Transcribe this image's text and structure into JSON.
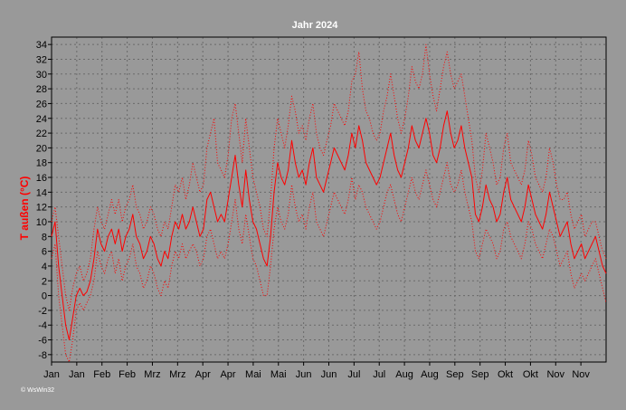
{
  "chart_data": {
    "type": "line",
    "title": "Jahr 2024",
    "ylabel": "T außen (°C)",
    "xlabel": "",
    "credit": "© WsWin32",
    "ylim": [
      -9,
      35
    ],
    "yticks": [
      34,
      32,
      30,
      28,
      26,
      24,
      22,
      20,
      18,
      16,
      14,
      12,
      10,
      8,
      6,
      4,
      2,
      0,
      -2,
      -4,
      -6,
      -8
    ],
    "month_labels": [
      "Jan",
      "Jan",
      "Feb",
      "Feb",
      "Mrz",
      "Mrz",
      "Apr",
      "Apr",
      "Mai",
      "Mai",
      "Jun",
      "Jun",
      "Jul",
      "Jul",
      "Aug",
      "Aug",
      "Sep",
      "Sep",
      "Okt",
      "Okt",
      "Nov",
      "Nov"
    ],
    "grid": true,
    "colors": {
      "background": "#999999",
      "line": "#ff0000",
      "grid": "#6a6a6a",
      "title": "#ffffff",
      "ylabel": "#ff0000"
    },
    "series": [
      {
        "style": "solid",
        "values": [
          8,
          10,
          4,
          0,
          -4,
          -6,
          -3,
          0,
          1,
          0,
          0.5,
          2,
          5,
          9,
          7,
          6,
          8,
          9,
          7,
          9,
          6,
          8,
          9,
          11,
          8,
          7,
          5,
          6,
          8,
          7,
          5,
          4,
          6,
          5,
          8,
          10,
          9,
          11,
          9,
          10,
          12,
          10,
          8,
          9,
          13,
          14,
          12,
          10,
          11,
          10,
          13,
          16,
          19,
          15,
          12,
          17,
          13,
          10,
          9,
          7,
          5,
          4,
          8,
          14,
          18,
          16,
          15,
          17,
          21,
          18,
          16,
          17,
          15,
          18,
          20,
          16,
          15,
          14,
          16,
          18,
          20,
          19,
          18,
          17,
          19,
          22,
          20,
          23,
          21,
          18,
          17,
          16,
          15,
          16,
          18,
          20,
          22,
          19,
          17,
          16,
          18,
          20,
          23,
          21,
          20,
          22,
          24,
          22,
          19,
          18,
          20,
          23,
          25,
          22,
          20,
          21,
          23,
          20,
          18,
          16,
          11,
          10,
          12,
          15,
          13,
          12,
          10,
          11,
          14,
          16,
          13,
          12,
          11,
          10,
          12,
          15,
          13,
          11,
          10,
          9,
          11,
          14,
          12,
          10,
          8,
          9,
          10,
          7,
          5,
          6,
          7,
          5,
          6,
          7,
          8,
          6,
          4,
          3
        ]
      },
      {
        "style": "dotted",
        "values": [
          10,
          12,
          8,
          4,
          0,
          -2,
          1,
          3,
          4,
          2,
          3,
          5,
          9,
          12,
          10,
          9,
          11,
          13,
          11,
          13,
          10,
          12,
          13,
          15,
          12,
          11,
          9,
          10,
          12,
          11,
          9,
          8,
          10,
          9,
          12,
          15,
          14,
          16,
          13,
          15,
          18,
          16,
          14,
          15,
          20,
          22,
          24,
          18,
          17,
          16,
          19,
          24,
          26,
          22,
          18,
          24,
          20,
          16,
          14,
          12,
          9,
          8,
          13,
          20,
          24,
          22,
          20,
          23,
          27,
          25,
          22,
          23,
          21,
          24,
          26,
          22,
          20,
          19,
          21,
          23,
          26,
          25,
          24,
          23,
          25,
          29,
          30,
          33,
          28,
          25,
          24,
          22,
          21,
          22,
          25,
          27,
          30,
          27,
          24,
          22,
          24,
          27,
          31,
          29,
          28,
          30,
          34,
          30,
          27,
          25,
          28,
          31,
          33,
          30,
          28,
          29,
          30,
          27,
          24,
          21,
          16,
          14,
          17,
          22,
          20,
          18,
          15,
          16,
          20,
          22,
          18,
          17,
          16,
          15,
          17,
          21,
          19,
          16,
          15,
          14,
          16,
          20,
          18,
          15,
          13,
          13,
          14,
          11,
          9,
          10,
          11,
          8,
          9,
          10,
          10,
          8,
          6,
          5
        ]
      },
      {
        "style": "dotted",
        "values": [
          5,
          7,
          0,
          -4,
          -8,
          -9,
          -6,
          -2,
          -1,
          -2,
          -1,
          0,
          2,
          6,
          4,
          3,
          5,
          6,
          3,
          5,
          2,
          4,
          5,
          7,
          4,
          3,
          1,
          2,
          4,
          3,
          1,
          0,
          2,
          1,
          4,
          6,
          5,
          7,
          5,
          6,
          7,
          6,
          4,
          5,
          8,
          9,
          7,
          5,
          6,
          5,
          7,
          10,
          13,
          9,
          7,
          11,
          8,
          5,
          4,
          2,
          0,
          0,
          4,
          9,
          12,
          10,
          9,
          11,
          15,
          12,
          10,
          11,
          9,
          12,
          14,
          10,
          9,
          8,
          10,
          12,
          14,
          13,
          12,
          11,
          13,
          16,
          13,
          15,
          14,
          12,
          11,
          10,
          9,
          10,
          12,
          14,
          15,
          13,
          11,
          10,
          12,
          14,
          16,
          14,
          13,
          15,
          17,
          15,
          13,
          12,
          14,
          16,
          18,
          15,
          14,
          15,
          17,
          14,
          12,
          10,
          6,
          5,
          7,
          9,
          8,
          7,
          5,
          6,
          9,
          10,
          8,
          7,
          6,
          5,
          7,
          10,
          9,
          7,
          6,
          5,
          7,
          9,
          8,
          6,
          4,
          5,
          6,
          3,
          1,
          2,
          3,
          2,
          3,
          4,
          5,
          3,
          1,
          -1
        ]
      }
    ]
  }
}
